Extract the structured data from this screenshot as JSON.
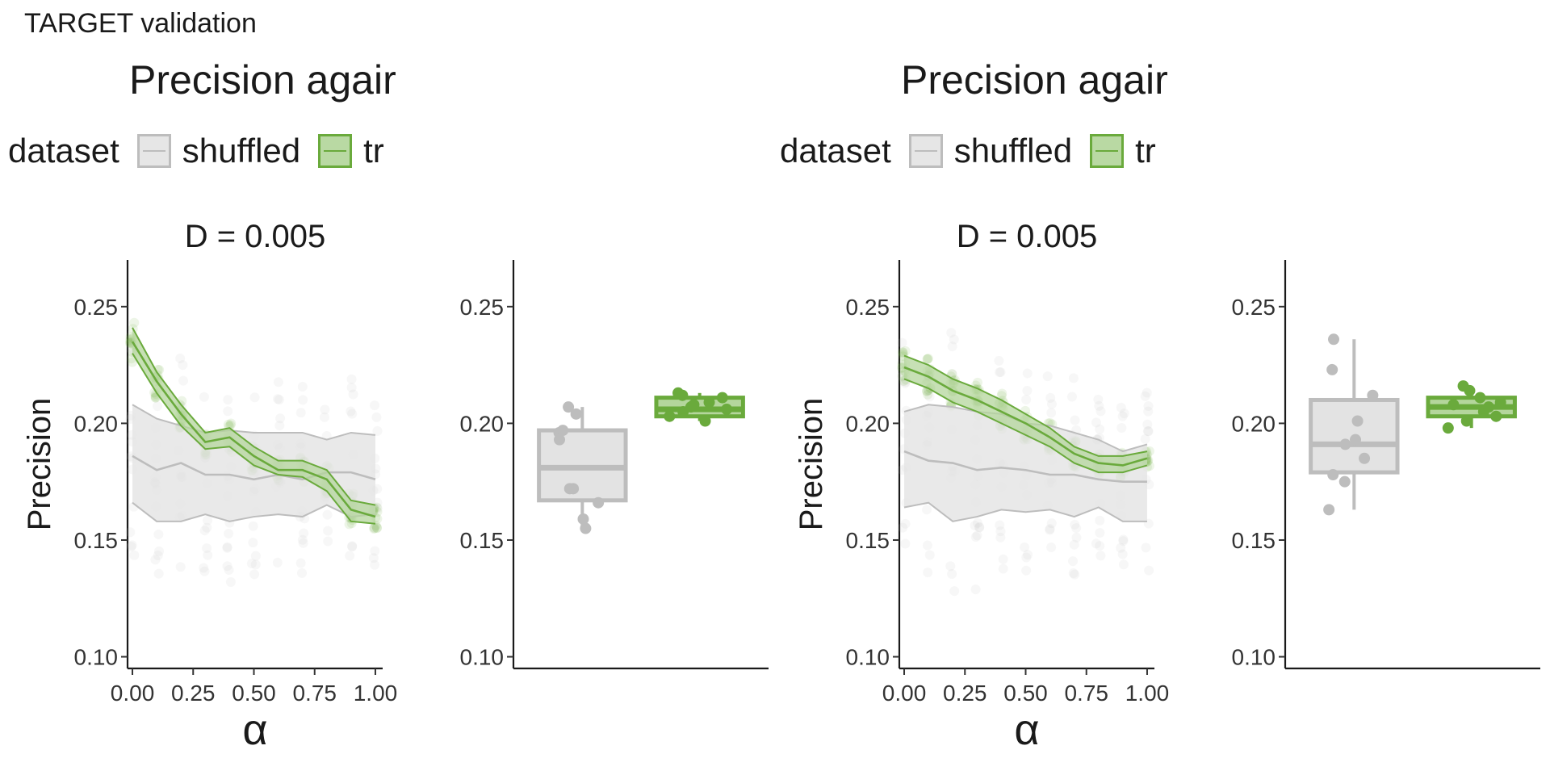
{
  "figure_title": "TARGET validation",
  "colors": {
    "shuffled": "#bdbdbd",
    "shuffled_fill": "#e3e3e3",
    "true": "#6aaa3c",
    "true_fill": "#b4d69c"
  },
  "panels": [
    {
      "title": "Precision agair",
      "legend": {
        "title": "dataset",
        "items": [
          "shuffled",
          "tr"
        ]
      }
    },
    {
      "title": "Precision agair",
      "legend": {
        "title": "dataset",
        "items": [
          "shuffled",
          "tr"
        ]
      }
    }
  ],
  "chart_data": [
    {
      "type": "line",
      "facet_label": "D = 0.005",
      "xlabel": "α",
      "ylabel": "Precision",
      "xlim": [
        -0.02,
        1.03
      ],
      "ylim": [
        0.095,
        0.27
      ],
      "x_ticks": [
        "0.00",
        "0.25",
        "0.50",
        "0.75",
        "1.00"
      ],
      "y_ticks": [
        "0.10",
        "0.15",
        "0.20",
        "0.25"
      ],
      "grid": false,
      "x": [
        0.0,
        0.1,
        0.2,
        0.3,
        0.4,
        0.5,
        0.6,
        0.7,
        0.8,
        0.9,
        1.0
      ],
      "series": [
        {
          "name": "shuffled",
          "mean": [
            0.186,
            0.18,
            0.183,
            0.178,
            0.178,
            0.176,
            0.178,
            0.176,
            0.179,
            0.179,
            0.176
          ],
          "lower": [
            0.166,
            0.158,
            0.158,
            0.161,
            0.158,
            0.16,
            0.161,
            0.16,
            0.165,
            0.16,
            0.161
          ],
          "upper": [
            0.208,
            0.202,
            0.199,
            0.196,
            0.197,
            0.196,
            0.196,
            0.196,
            0.193,
            0.196,
            0.195
          ]
        },
        {
          "name": "tr",
          "mean": [
            0.235,
            0.218,
            0.204,
            0.192,
            0.194,
            0.186,
            0.18,
            0.18,
            0.176,
            0.163,
            0.16
          ],
          "lower": [
            0.23,
            0.213,
            0.199,
            0.189,
            0.19,
            0.182,
            0.178,
            0.177,
            0.171,
            0.158,
            0.157
          ],
          "upper": [
            0.241,
            0.222,
            0.208,
            0.196,
            0.198,
            0.19,
            0.184,
            0.184,
            0.18,
            0.167,
            0.165
          ]
        }
      ]
    },
    {
      "type": "box",
      "ylim": [
        0.095,
        0.27
      ],
      "y_ticks": [
        "0.10",
        "0.15",
        "0.20",
        "0.25"
      ],
      "grid": false,
      "boxes": [
        {
          "name": "shuffled",
          "q1": 0.167,
          "median": 0.181,
          "q3": 0.197,
          "whisker_low": 0.155,
          "whisker_high": 0.207,
          "points": [
            0.155,
            0.159,
            0.166,
            0.172,
            0.172,
            0.193,
            0.196,
            0.197,
            0.204,
            0.207
          ]
        },
        {
          "name": "tr",
          "q1": 0.203,
          "median": 0.206,
          "q3": 0.211,
          "whisker_low": 0.201,
          "whisker_high": 0.213,
          "points": [
            0.201,
            0.203,
            0.205,
            0.206,
            0.207,
            0.208,
            0.209,
            0.211,
            0.212,
            0.213
          ]
        }
      ]
    },
    {
      "type": "line",
      "facet_label": "D = 0.005",
      "xlabel": "α",
      "ylabel": "Precision",
      "xlim": [
        -0.02,
        1.03
      ],
      "ylim": [
        0.095,
        0.27
      ],
      "x_ticks": [
        "0.00",
        "0.25",
        "0.50",
        "0.75",
        "1.00"
      ],
      "y_ticks": [
        "0.10",
        "0.15",
        "0.20",
        "0.25"
      ],
      "grid": false,
      "x": [
        0.0,
        0.1,
        0.2,
        0.3,
        0.4,
        0.5,
        0.6,
        0.7,
        0.8,
        0.9,
        1.0
      ],
      "series": [
        {
          "name": "shuffled",
          "mean": [
            0.188,
            0.184,
            0.183,
            0.18,
            0.181,
            0.18,
            0.178,
            0.178,
            0.176,
            0.175,
            0.175
          ],
          "lower": [
            0.164,
            0.166,
            0.158,
            0.16,
            0.163,
            0.162,
            0.163,
            0.16,
            0.164,
            0.158,
            0.158
          ],
          "upper": [
            0.205,
            0.208,
            0.207,
            0.205,
            0.204,
            0.2,
            0.199,
            0.196,
            0.193,
            0.188,
            0.191
          ]
        },
        {
          "name": "tr",
          "mean": [
            0.224,
            0.22,
            0.214,
            0.21,
            0.205,
            0.2,
            0.194,
            0.187,
            0.183,
            0.182,
            0.185
          ],
          "lower": [
            0.219,
            0.215,
            0.209,
            0.205,
            0.2,
            0.195,
            0.19,
            0.183,
            0.179,
            0.179,
            0.182
          ],
          "upper": [
            0.229,
            0.225,
            0.219,
            0.215,
            0.21,
            0.204,
            0.198,
            0.19,
            0.186,
            0.186,
            0.188
          ]
        }
      ]
    },
    {
      "type": "box",
      "ylim": [
        0.095,
        0.27
      ],
      "y_ticks": [
        "0.10",
        "0.15",
        "0.20",
        "0.25"
      ],
      "grid": false,
      "boxes": [
        {
          "name": "shuffled",
          "q1": 0.179,
          "median": 0.191,
          "q3": 0.21,
          "whisker_low": 0.163,
          "whisker_high": 0.236,
          "points": [
            0.163,
            0.175,
            0.178,
            0.185,
            0.191,
            0.193,
            0.201,
            0.212,
            0.223,
            0.236
          ]
        },
        {
          "name": "tr",
          "q1": 0.203,
          "median": 0.207,
          "q3": 0.211,
          "whisker_low": 0.198,
          "whisker_high": 0.216,
          "points": [
            0.198,
            0.201,
            0.203,
            0.205,
            0.207,
            0.208,
            0.209,
            0.211,
            0.214,
            0.216
          ]
        }
      ]
    }
  ]
}
